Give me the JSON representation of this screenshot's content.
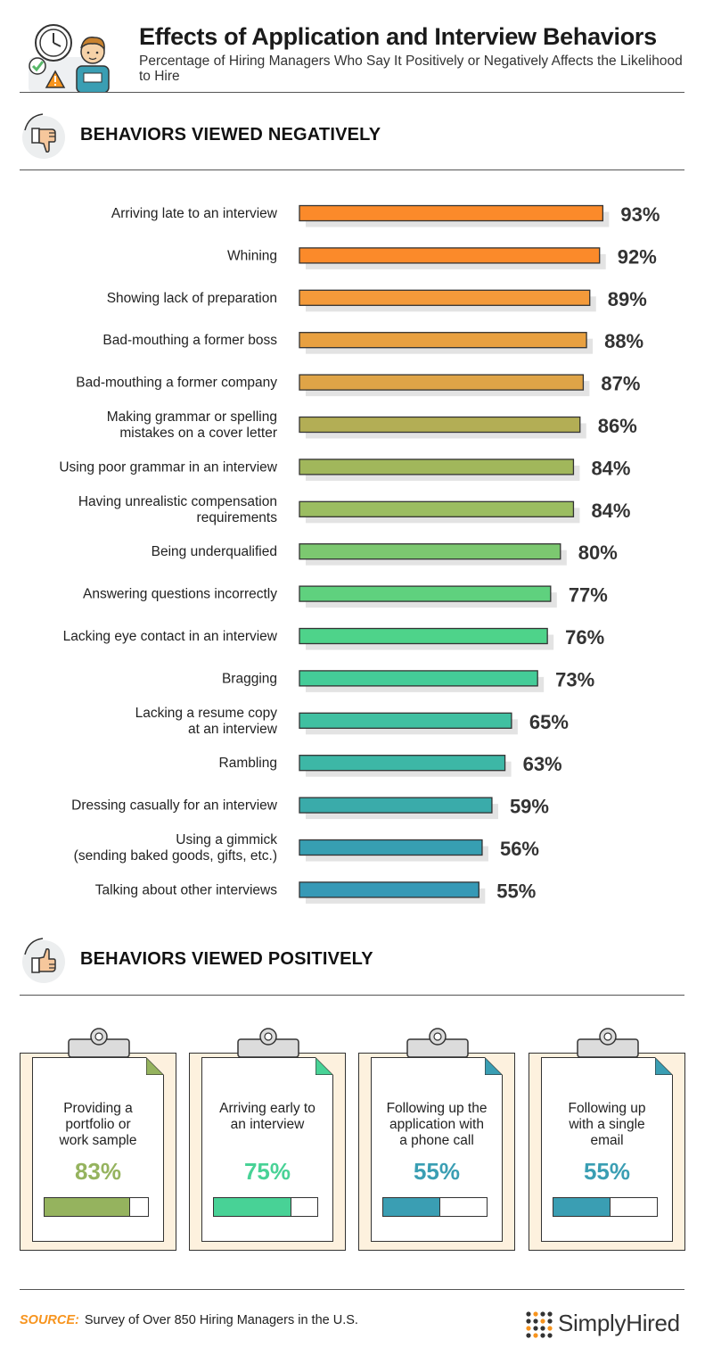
{
  "header": {
    "title": "Effects of Application and Interview Behaviors",
    "subtitle": "Percentage of Hiring Managers Who Say It Positively or Negatively Affects the Likelihood to Hire"
  },
  "sections": {
    "negative_title": "BEHAVIORS VIEWED NEGATIVELY",
    "positive_title": "BEHAVIORS VIEWED POSITIVELY"
  },
  "chart_data": {
    "type": "bar",
    "orientation": "horizontal",
    "value_suffix": "%",
    "xlim": [
      0,
      100
    ],
    "grid": false,
    "categories": [
      [
        "Arriving late to an interview"
      ],
      [
        "Whining"
      ],
      [
        "Showing lack of preparation"
      ],
      [
        "Bad-mouthing a former boss"
      ],
      [
        "Bad-mouthing a former company"
      ],
      [
        "Making grammar or spelling",
        "mistakes on a cover letter"
      ],
      [
        "Using poor grammar in an interview"
      ],
      [
        "Having unrealistic compensation",
        "requirements"
      ],
      [
        "Being underqualified"
      ],
      [
        "Answering questions incorrectly"
      ],
      [
        "Lacking eye contact in an interview"
      ],
      [
        "Bragging"
      ],
      [
        "Lacking a resume copy",
        "at an interview"
      ],
      [
        "Rambling"
      ],
      [
        "Dressing casually for an interview"
      ],
      [
        "Using a gimmick",
        "(sending baked goods, gifts, etc.)"
      ],
      [
        "Talking about other interviews"
      ]
    ],
    "values": [
      93,
      92,
      89,
      88,
      87,
      86,
      84,
      84,
      80,
      77,
      76,
      73,
      65,
      63,
      59,
      56,
      55
    ],
    "colors": [
      "#fb8a2a",
      "#fb8a2a",
      "#f49a3a",
      "#e8a040",
      "#dfa447",
      "#b3ae55",
      "#a1b75b",
      "#9bbd61",
      "#7cc870",
      "#5fd17e",
      "#4ed38a",
      "#44cc98",
      "#40c0a1",
      "#3db7a6",
      "#3aabaa",
      "#379fb2",
      "#3699b6"
    ]
  },
  "positive_cards": [
    {
      "lines": [
        "Providing a",
        "portfolio or",
        "work sample"
      ],
      "value": 83,
      "label": "83%",
      "color": "#95b35e"
    },
    {
      "lines": [
        "Arriving early to",
        "an interview"
      ],
      "value": 75,
      "label": "75%",
      "color": "#48d296"
    },
    {
      "lines": [
        "Following up the",
        "application with",
        "a phone call"
      ],
      "value": 55,
      "label": "55%",
      "color": "#3a9eb3"
    },
    {
      "lines": [
        "Following up",
        "with a single",
        "email"
      ],
      "value": 55,
      "label": "55%",
      "color": "#3a9eb3"
    }
  ],
  "footer": {
    "source_label": "SOURCE:",
    "source_text": "Survey of Over 850 Hiring Managers in the U.S.",
    "brand": "SimplyHired"
  },
  "icons": {
    "header": "clock-person-warning-illustration",
    "negative": "thumbs-down-icon",
    "positive": "thumbs-up-icon",
    "brand": "simplyhired-dots-logo-icon"
  }
}
